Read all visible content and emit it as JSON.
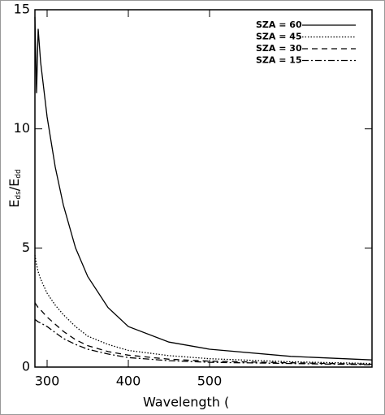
{
  "chart_data": {
    "type": "line",
    "x_label": "Wavelength (",
    "y_label": {
      "main1": "E",
      "sub1": "ds",
      "main2": "/E",
      "sub2": "dd"
    },
    "x": [
      285,
      287,
      289,
      292,
      300,
      310,
      320,
      335,
      350,
      375,
      400,
      450,
      500,
      600,
      700
    ],
    "series": [
      {
        "name": "SZA = 60",
        "color": "#000000",
        "dash": "none",
        "values": [
          14.7,
          11.5,
          14.2,
          12.8,
          10.5,
          8.4,
          6.8,
          5.0,
          3.8,
          2.5,
          1.7,
          1.05,
          0.75,
          0.45,
          0.3
        ]
      },
      {
        "name": "SZA = 45",
        "color": "#000000",
        "dash": "1.5 2",
        "values": [
          4.7,
          4.3,
          4.0,
          3.7,
          3.1,
          2.6,
          2.2,
          1.7,
          1.3,
          0.95,
          0.7,
          0.48,
          0.35,
          0.22,
          0.15
        ]
      },
      {
        "name": "SZA = 30",
        "color": "#000000",
        "dash": "7 5",
        "values": [
          2.7,
          2.6,
          2.5,
          2.4,
          2.1,
          1.8,
          1.5,
          1.15,
          0.9,
          0.65,
          0.5,
          0.33,
          0.25,
          0.18,
          0.12
        ]
      },
      {
        "name": "SZA = 15",
        "color": "#000000",
        "dash": "8 3 2 3",
        "values": [
          2.0,
          1.95,
          1.9,
          1.85,
          1.7,
          1.45,
          1.2,
          0.95,
          0.75,
          0.55,
          0.4,
          0.27,
          0.2,
          0.15,
          0.1
        ]
      }
    ],
    "xlim": [
      285,
      700
    ],
    "ylim": [
      0,
      15
    ],
    "xticks": [
      300,
      400,
      500
    ],
    "yticks": [
      0,
      5,
      10,
      15
    ],
    "legend": "upper right"
  }
}
